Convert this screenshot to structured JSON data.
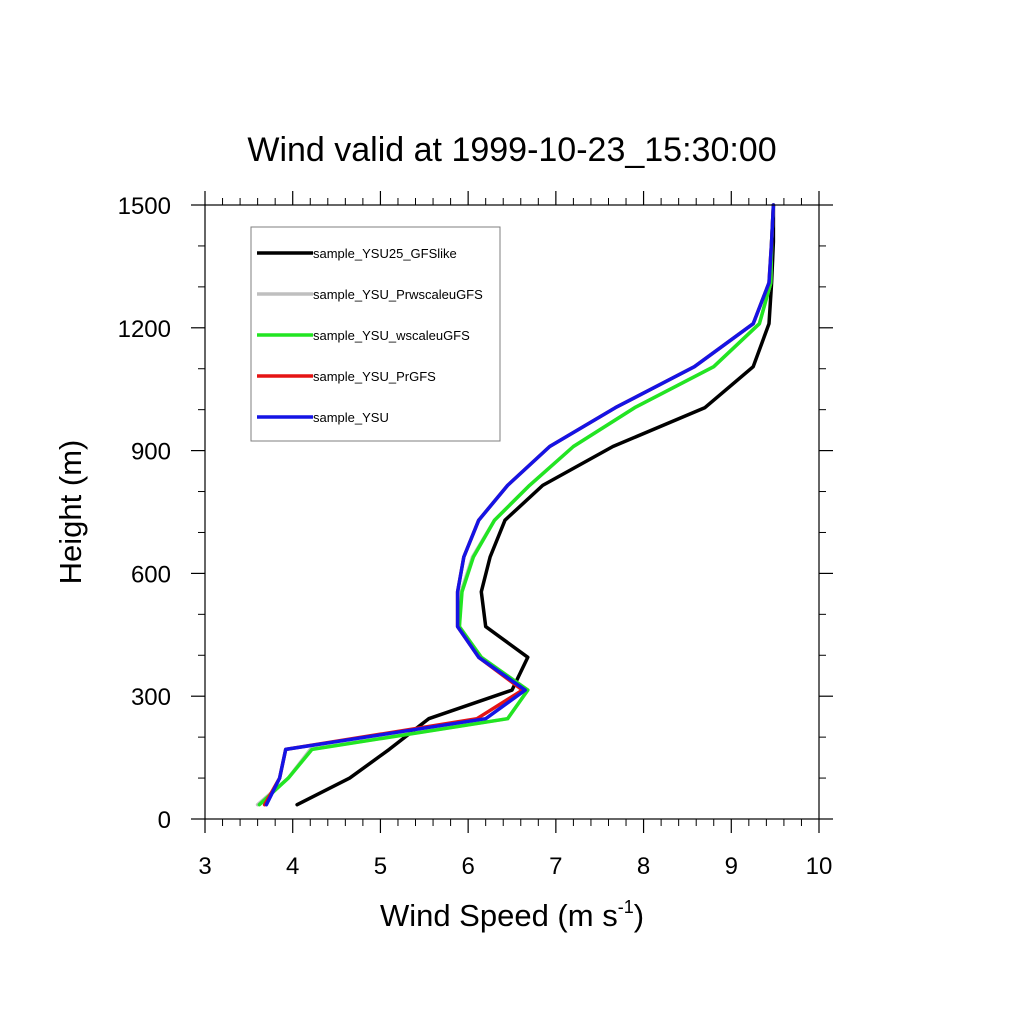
{
  "chart_data": {
    "type": "line",
    "title": "Wind valid at 1999-10-23_15:30:00",
    "xlabel_main": "Wind Speed (m s",
    "xlabel_sup": "-1",
    "xlabel_close": ")",
    "ylabel": "Height (m)",
    "xlim": [
      3,
      10
    ],
    "ylim": [
      0,
      1500
    ],
    "xticks": [
      3,
      4,
      5,
      6,
      7,
      8,
      9,
      10
    ],
    "yticks": [
      0,
      300,
      600,
      900,
      1200,
      1500
    ],
    "x_minor_step": 0.2,
    "y_minor_step": 100,
    "legend_position": "top-left",
    "series": [
      {
        "name": "sample_YSU25_GFSlike",
        "color": "#000000",
        "x": [
          4.05,
          4.65,
          5.1,
          5.55,
          6.5,
          6.68,
          6.2,
          6.15,
          6.25,
          6.42,
          6.85,
          7.65,
          8.7,
          9.25,
          9.43,
          9.46,
          9.48,
          9.48
        ],
        "y": [
          35,
          100,
          170,
          245,
          315,
          395,
          470,
          555,
          640,
          730,
          815,
          910,
          1005,
          1105,
          1210,
          1310,
          1410,
          1500
        ]
      },
      {
        "name": "sample_YSU_PrwscaleuGFS",
        "color": "#bfbfbf",
        "x": [
          3.6,
          3.95,
          4.2,
          6.45,
          6.68,
          6.15,
          5.9,
          5.92,
          6.05,
          6.3,
          6.7,
          7.2,
          7.9,
          8.8,
          9.32,
          9.45,
          9.46,
          9.48
        ],
        "y": [
          35,
          100,
          170,
          245,
          315,
          395,
          470,
          555,
          640,
          730,
          815,
          910,
          1005,
          1105,
          1210,
          1310,
          1410,
          1500
        ]
      },
      {
        "name": "sample_YSU_wscaleuGFS",
        "color": "#22e522",
        "x": [
          3.62,
          3.95,
          4.22,
          6.45,
          6.68,
          6.15,
          5.9,
          5.93,
          6.06,
          6.3,
          6.7,
          7.2,
          7.9,
          8.8,
          9.32,
          9.45,
          9.46,
          9.48
        ],
        "y": [
          35,
          100,
          170,
          245,
          315,
          395,
          470,
          555,
          640,
          730,
          815,
          910,
          1005,
          1105,
          1210,
          1310,
          1410,
          1500
        ]
      },
      {
        "name": "sample_YSU_PrGFS",
        "color": "#e51414",
        "x": [
          3.68,
          3.85,
          3.92,
          6.1,
          6.62,
          6.12,
          5.88,
          5.88,
          5.95,
          6.12,
          6.45,
          6.93,
          7.68,
          8.58,
          9.25,
          9.43,
          9.46,
          9.48
        ],
        "y": [
          35,
          100,
          170,
          245,
          315,
          395,
          470,
          555,
          640,
          730,
          815,
          910,
          1005,
          1105,
          1210,
          1310,
          1410,
          1500
        ]
      },
      {
        "name": "sample_YSU",
        "color": "#1414e5",
        "x": [
          3.7,
          3.85,
          3.92,
          6.2,
          6.65,
          6.12,
          5.88,
          5.88,
          5.95,
          6.12,
          6.45,
          6.93,
          7.68,
          8.58,
          9.25,
          9.43,
          9.46,
          9.48
        ],
        "y": [
          35,
          100,
          170,
          245,
          315,
          395,
          470,
          555,
          640,
          730,
          815,
          910,
          1005,
          1105,
          1210,
          1310,
          1410,
          1500
        ]
      }
    ]
  }
}
